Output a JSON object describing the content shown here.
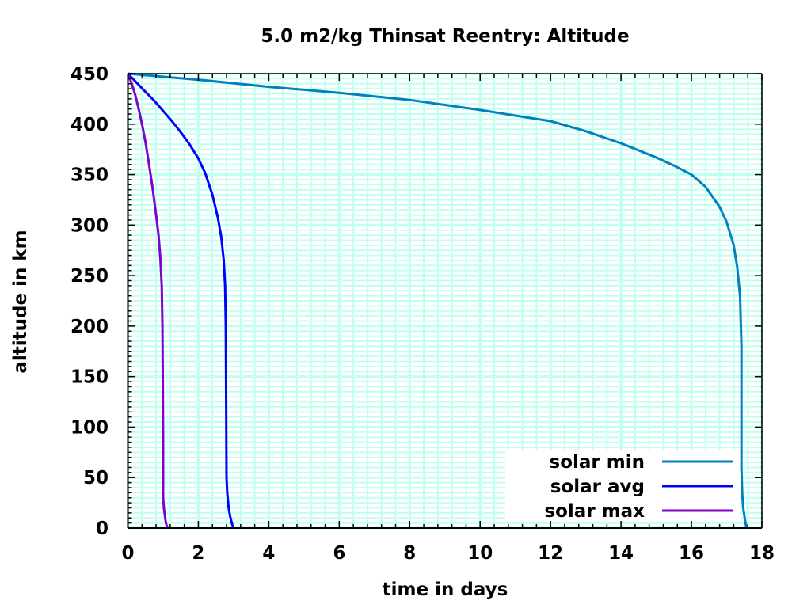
{
  "chart_data": {
    "type": "line",
    "title": "5.0 m2/kg Thinsat Reentry: Altitude",
    "xlabel": "time in days",
    "ylabel": "altitude in km",
    "xlim": [
      0,
      18
    ],
    "ylim": [
      0,
      450
    ],
    "x_ticks": [
      "0",
      "2",
      "4",
      "6",
      "8",
      "10",
      "12",
      "14",
      "16",
      "18"
    ],
    "y_ticks": [
      "0",
      "50",
      "100",
      "150",
      "200",
      "250",
      "300",
      "350",
      "400",
      "450"
    ],
    "x_tick_values": [
      0,
      2,
      4,
      6,
      8,
      10,
      12,
      14,
      16,
      18
    ],
    "y_tick_values": [
      0,
      50,
      100,
      150,
      200,
      250,
      300,
      350,
      400,
      450
    ],
    "x_minor_step": 0.4,
    "y_minor_step": 5,
    "grid": true,
    "grid_color": "#c0fff0",
    "legend_position": "bottom-right",
    "series": [
      {
        "name": "solar min",
        "color": "#0080c0",
        "x": [
          0,
          2,
          4,
          6,
          8,
          10,
          12,
          13,
          14,
          15,
          15.5,
          16,
          16.4,
          16.8,
          17.0,
          17.2,
          17.3,
          17.38,
          17.42,
          17.42,
          17.44,
          17.47,
          17.52,
          17.56
        ],
        "y": [
          450,
          444,
          437,
          431,
          424,
          414,
          403,
          393,
          381,
          367,
          359,
          350,
          338,
          318,
          303,
          280,
          258,
          230,
          180,
          60,
          35,
          20,
          8,
          0
        ]
      },
      {
        "name": "solar avg",
        "color": "#0000ff",
        "x": [
          0,
          0.25,
          0.5,
          0.75,
          1.0,
          1.25,
          1.5,
          1.75,
          2.0,
          2.2,
          2.4,
          2.55,
          2.65,
          2.72,
          2.76,
          2.78,
          2.79,
          2.8,
          2.82,
          2.86,
          2.9,
          2.95,
          2.99
        ],
        "y": [
          450,
          441,
          432,
          423,
          413,
          403,
          392,
          380,
          366,
          351,
          330,
          308,
          288,
          265,
          240,
          200,
          120,
          50,
          35,
          20,
          12,
          5,
          0
        ]
      },
      {
        "name": "solar max",
        "color": "#8000d0",
        "x": [
          0,
          0.1,
          0.2,
          0.3,
          0.4,
          0.5,
          0.6,
          0.7,
          0.8,
          0.87,
          0.92,
          0.96,
          0.98,
          0.99,
          1.0,
          1.0,
          1.02,
          1.05,
          1.08,
          1.12
        ],
        "y": [
          450,
          441,
          430,
          416,
          400,
          382,
          360,
          337,
          310,
          290,
          268,
          240,
          200,
          150,
          80,
          30,
          20,
          12,
          5,
          0
        ]
      }
    ]
  }
}
